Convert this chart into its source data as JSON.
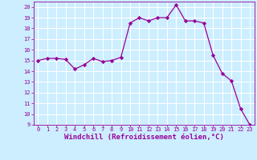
{
  "x": [
    0,
    1,
    2,
    3,
    4,
    5,
    6,
    7,
    8,
    9,
    10,
    11,
    12,
    13,
    14,
    15,
    16,
    17,
    18,
    19,
    20,
    21,
    22,
    23
  ],
  "y": [
    15,
    15.2,
    15.2,
    15.1,
    14.2,
    14.6,
    15.2,
    14.9,
    15.0,
    15.3,
    18.5,
    19.0,
    18.7,
    19.0,
    19.0,
    20.2,
    18.7,
    18.7,
    18.5,
    15.5,
    13.8,
    13.1,
    10.5,
    9.0
  ],
  "line_color": "#990099",
  "marker": "D",
  "marker_size": 2.2,
  "bg_color": "#cceeff",
  "grid_color": "#ffffff",
  "xlabel": "Windchill (Refroidissement éolien,°C)",
  "xlabel_color": "#990099",
  "tick_color": "#990099",
  "ylim": [
    9,
    20.5
  ],
  "xlim": [
    -0.5,
    23.5
  ],
  "yticks": [
    9,
    10,
    11,
    12,
    13,
    14,
    15,
    16,
    17,
    18,
    19,
    20
  ],
  "xticks": [
    0,
    1,
    2,
    3,
    4,
    5,
    6,
    7,
    8,
    9,
    10,
    11,
    12,
    13,
    14,
    15,
    16,
    17,
    18,
    19,
    20,
    21,
    22,
    23
  ],
  "spine_color": "#990099",
  "tick_fontsize": 5.0,
  "xlabel_fontsize": 6.5
}
